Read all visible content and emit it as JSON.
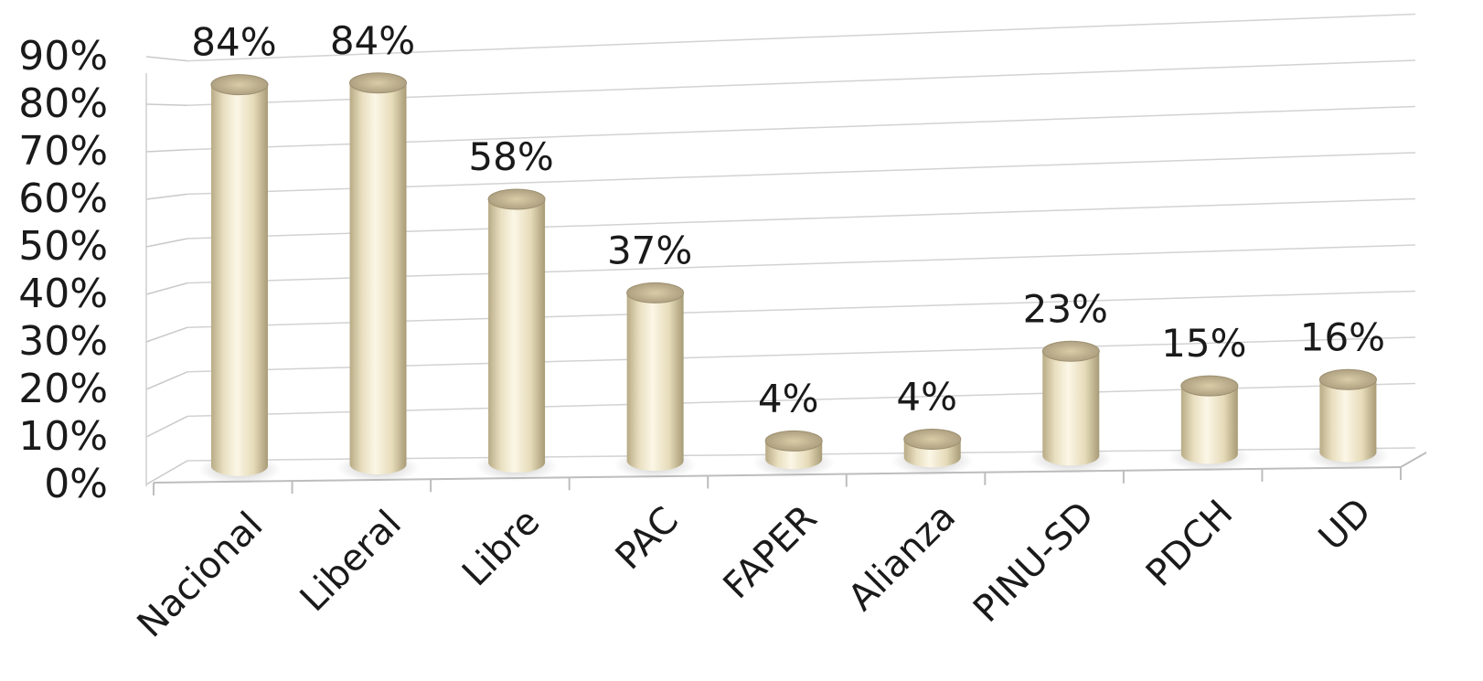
{
  "chart_data": {
    "type": "bar",
    "categories": [
      "Nacional",
      "Liberal",
      "Libre",
      "PAC",
      "FAPER",
      "Alianza",
      "PINU-SD",
      "PDCH",
      "UD"
    ],
    "values": [
      84,
      84,
      58,
      37,
      4,
      4,
      23,
      15,
      16
    ],
    "data_labels": [
      "84%",
      "84%",
      "58%",
      "37%",
      "4%",
      "4%",
      "23%",
      "15%",
      "16%"
    ],
    "y_ticks": [
      "0%",
      "10%",
      "20%",
      "30%",
      "40%",
      "50%",
      "60%",
      "70%",
      "80%",
      "90%"
    ],
    "ylim": [
      0,
      90
    ],
    "grid": true,
    "legend": "none",
    "bar_color": "#efe6c8",
    "bar_shade": "#b7aa85",
    "title": "",
    "xlabel": "",
    "ylabel": ""
  }
}
